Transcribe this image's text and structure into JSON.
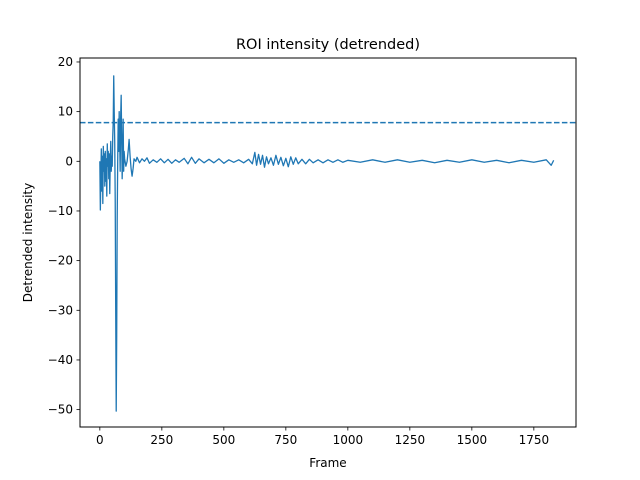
{
  "chart_data": {
    "type": "line",
    "title": "ROI intensity (detrended)",
    "xlabel": "Frame",
    "ylabel": "Detrended intensity",
    "xlim": [
      -80,
      1920
    ],
    "ylim": [
      -53.5,
      20.8
    ],
    "x_ticks": [
      0,
      250,
      500,
      750,
      1000,
      1250,
      1500,
      1750
    ],
    "y_ticks": [
      -50,
      -40,
      -30,
      -20,
      -10,
      0,
      10,
      20
    ],
    "grid": false,
    "color": "#1f77b4",
    "threshold": {
      "y": 7.8,
      "style": "dashed"
    },
    "series": [
      {
        "points": [
          [
            0,
            0.0
          ],
          [
            2,
            -9.8
          ],
          [
            4,
            -3.0
          ],
          [
            6,
            2.5
          ],
          [
            8,
            -6.0
          ],
          [
            10,
            1.0
          ],
          [
            12,
            -8.5
          ],
          [
            14,
            3.0
          ],
          [
            16,
            -2.0
          ],
          [
            18,
            1.5
          ],
          [
            20,
            -5.0
          ],
          [
            22,
            2.0
          ],
          [
            24,
            -4.0
          ],
          [
            26,
            0.5
          ],
          [
            28,
            -7.0
          ],
          [
            30,
            3.5
          ],
          [
            32,
            -1.0
          ],
          [
            34,
            2.0
          ],
          [
            36,
            -3.5
          ],
          [
            38,
            1.5
          ],
          [
            40,
            -6.5
          ],
          [
            42,
            0.0
          ],
          [
            44,
            4.0
          ],
          [
            46,
            -2.0
          ],
          [
            48,
            1.0
          ],
          [
            50,
            -1.0
          ],
          [
            52,
            5.0
          ],
          [
            54,
            8.0
          ],
          [
            56,
            17.2
          ],
          [
            58,
            10.0
          ],
          [
            60,
            4.0
          ],
          [
            62,
            -8.0
          ],
          [
            64,
            -30.0
          ],
          [
            66,
            -50.3
          ],
          [
            68,
            -35.0
          ],
          [
            70,
            -11.5
          ],
          [
            72,
            0.0
          ],
          [
            74,
            8.5
          ],
          [
            76,
            2.0
          ],
          [
            78,
            10.0
          ],
          [
            80,
            4.0
          ],
          [
            82,
            -2.0
          ],
          [
            84,
            9.0
          ],
          [
            86,
            13.3
          ],
          [
            88,
            5.0
          ],
          [
            90,
            -3.5
          ],
          [
            92,
            1.0
          ],
          [
            94,
            8.5
          ],
          [
            96,
            -2.0
          ],
          [
            98,
            2.0
          ],
          [
            100,
            0.5
          ],
          [
            105,
            -1.0
          ],
          [
            110,
            0.0
          ],
          [
            115,
            2.5
          ],
          [
            118,
            4.4
          ],
          [
            122,
            1.0
          ],
          [
            126,
            -1.5
          ],
          [
            130,
            -3.0
          ],
          [
            134,
            -1.5
          ],
          [
            138,
            0.5
          ],
          [
            145,
            0.0
          ],
          [
            150,
            0.8
          ],
          [
            160,
            -0.3
          ],
          [
            170,
            0.5
          ],
          [
            180,
            0.0
          ],
          [
            190,
            0.7
          ],
          [
            200,
            -0.4
          ],
          [
            215,
            0.3
          ],
          [
            230,
            -0.2
          ],
          [
            245,
            0.5
          ],
          [
            260,
            -0.3
          ],
          [
            275,
            0.4
          ],
          [
            290,
            -0.4
          ],
          [
            305,
            0.3
          ],
          [
            320,
            -0.2
          ],
          [
            340,
            0.6
          ],
          [
            355,
            -0.5
          ],
          [
            370,
            0.8
          ],
          [
            385,
            -0.4
          ],
          [
            400,
            0.5
          ],
          [
            420,
            -0.3
          ],
          [
            440,
            0.4
          ],
          [
            460,
            -0.3
          ],
          [
            480,
            0.5
          ],
          [
            500,
            -0.4
          ],
          [
            520,
            0.3
          ],
          [
            540,
            -0.2
          ],
          [
            560,
            0.3
          ],
          [
            580,
            -0.3
          ],
          [
            600,
            0.4
          ],
          [
            615,
            -0.5
          ],
          [
            625,
            1.8
          ],
          [
            632,
            -0.8
          ],
          [
            640,
            1.4
          ],
          [
            648,
            -0.6
          ],
          [
            656,
            1.2
          ],
          [
            664,
            -1.2
          ],
          [
            672,
            0.9
          ],
          [
            680,
            -0.5
          ],
          [
            690,
            0.7
          ],
          [
            700,
            -0.8
          ],
          [
            710,
            1.2
          ],
          [
            720,
            -0.6
          ],
          [
            730,
            0.8
          ],
          [
            740,
            -0.9
          ],
          [
            750,
            0.6
          ],
          [
            760,
            -1.1
          ],
          [
            770,
            0.9
          ],
          [
            780,
            -0.6
          ],
          [
            790,
            0.7
          ],
          [
            800,
            -0.5
          ],
          [
            815,
            0.4
          ],
          [
            830,
            -0.5
          ],
          [
            845,
            0.4
          ],
          [
            860,
            -0.3
          ],
          [
            880,
            0.3
          ],
          [
            900,
            -0.3
          ],
          [
            920,
            0.3
          ],
          [
            940,
            -0.2
          ],
          [
            960,
            0.3
          ],
          [
            980,
            -0.2
          ],
          [
            1000,
            0.2
          ],
          [
            1050,
            -0.2
          ],
          [
            1100,
            0.3
          ],
          [
            1150,
            -0.2
          ],
          [
            1200,
            0.3
          ],
          [
            1250,
            -0.2
          ],
          [
            1300,
            0.2
          ],
          [
            1350,
            -0.3
          ],
          [
            1400,
            0.2
          ],
          [
            1450,
            -0.2
          ],
          [
            1500,
            0.3
          ],
          [
            1550,
            -0.2
          ],
          [
            1600,
            0.2
          ],
          [
            1650,
            -0.3
          ],
          [
            1700,
            0.2
          ],
          [
            1750,
            -0.2
          ],
          [
            1800,
            0.3
          ],
          [
            1820,
            -0.8
          ],
          [
            1830,
            0.2
          ]
        ]
      }
    ]
  }
}
